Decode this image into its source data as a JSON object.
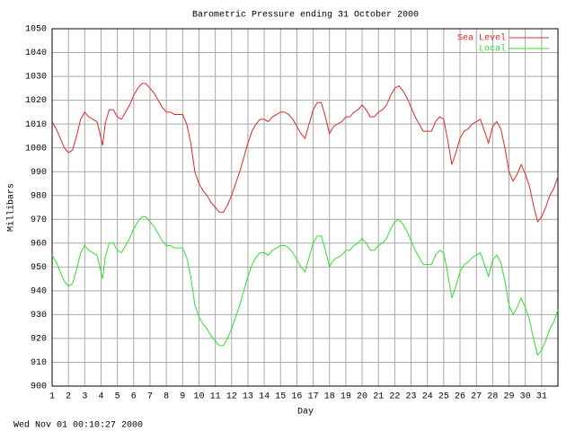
{
  "chart_data": {
    "type": "line",
    "title": "Barometric Pressure ending 31 October 2000",
    "x_label": "Day",
    "y_label": "Millibars",
    "footer": "Wed Nov 01 00:10:27 2000",
    "xlim": [
      1,
      32
    ],
    "xticks": [
      1,
      2,
      3,
      4,
      5,
      6,
      7,
      8,
      9,
      10,
      11,
      12,
      13,
      14,
      15,
      16,
      17,
      18,
      19,
      20,
      21,
      22,
      23,
      24,
      25,
      26,
      27,
      28,
      29,
      30,
      31
    ],
    "ylim": [
      900,
      1050
    ],
    "yticks": [
      900,
      910,
      920,
      930,
      940,
      950,
      960,
      970,
      980,
      990,
      1000,
      1010,
      1020,
      1030,
      1040,
      1050
    ],
    "grid": true,
    "legend": "top-right",
    "x": [
      1,
      1.25,
      1.5,
      1.75,
      2,
      2.25,
      2.5,
      2.75,
      3,
      3.25,
      3.5,
      3.75,
      4,
      4.1,
      4.25,
      4.5,
      4.75,
      5,
      5.25,
      5.5,
      5.75,
      6,
      6.25,
      6.5,
      6.75,
      7,
      7.25,
      7.5,
      7.75,
      8,
      8.25,
      8.5,
      8.75,
      9,
      9.25,
      9.5,
      9.75,
      10,
      10.25,
      10.5,
      10.75,
      11,
      11.25,
      11.5,
      11.75,
      12,
      12.25,
      12.5,
      12.75,
      13,
      13.25,
      13.5,
      13.75,
      14,
      14.25,
      14.5,
      14.75,
      15,
      15.25,
      15.5,
      15.75,
      16,
      16.25,
      16.5,
      16.75,
      17,
      17.25,
      17.5,
      17.75,
      18,
      18.25,
      18.5,
      18.75,
      19,
      19.25,
      19.5,
      19.75,
      20,
      20.25,
      20.5,
      20.75,
      21,
      21.25,
      21.5,
      21.75,
      22,
      22.25,
      22.5,
      22.75,
      23,
      23.25,
      23.5,
      23.75,
      24,
      24.25,
      24.5,
      24.75,
      25,
      25.25,
      25.5,
      25.75,
      26,
      26.25,
      26.5,
      26.75,
      27,
      27.25,
      27.5,
      27.75,
      28,
      28.25,
      28.5,
      28.75,
      29,
      29.25,
      29.5,
      29.75,
      30,
      30.25,
      30.5,
      30.75,
      31,
      31.25,
      31.5,
      31.75,
      32
    ],
    "series": [
      {
        "name": "Sea Level",
        "color": "#e02828",
        "values": [
          1011,
          1008,
          1004,
          1000,
          998,
          999,
          1005,
          1012,
          1015,
          1013,
          1012,
          1011,
          1004,
          1001,
          1010,
          1016,
          1016,
          1013,
          1012,
          1015,
          1018,
          1022,
          1025,
          1027,
          1027,
          1025,
          1023,
          1020,
          1017,
          1015,
          1015,
          1014,
          1014,
          1014,
          1010,
          1002,
          990,
          985,
          982,
          980,
          977,
          975,
          973,
          973,
          976,
          980,
          985,
          990,
          996,
          1002,
          1007,
          1010,
          1012,
          1012,
          1011,
          1013,
          1014,
          1015,
          1015,
          1014,
          1012,
          1009,
          1006,
          1004,
          1010,
          1016,
          1019,
          1019,
          1013,
          1006,
          1009,
          1010,
          1011,
          1013,
          1013,
          1015,
          1016,
          1018,
          1016,
          1013,
          1013,
          1015,
          1016,
          1018,
          1022,
          1025,
          1026,
          1024,
          1021,
          1017,
          1013,
          1010,
          1007,
          1007,
          1007,
          1011,
          1013,
          1012,
          1003,
          993,
          998,
          1004,
          1007,
          1008,
          1010,
          1011,
          1012,
          1007,
          1002,
          1009,
          1011,
          1008,
          1000,
          990,
          986,
          989,
          993,
          989,
          984,
          976,
          969,
          971,
          975,
          980,
          983,
          988
        ]
      },
      {
        "name": "Local",
        "color": "#30e030",
        "values": [
          955,
          952,
          948,
          944,
          942,
          943,
          949,
          956,
          959,
          957,
          956,
          955,
          948,
          945,
          954,
          960,
          960,
          957,
          956,
          959,
          962,
          966,
          969,
          971,
          971,
          969,
          967,
          964,
          961,
          959,
          959,
          958,
          958,
          958,
          954,
          946,
          934,
          929,
          926,
          924,
          921,
          919,
          917,
          917,
          920,
          924,
          929,
          934,
          940,
          946,
          951,
          954,
          956,
          956,
          955,
          957,
          958,
          959,
          959,
          958,
          956,
          953,
          950,
          948,
          954,
          960,
          963,
          963,
          957,
          950,
          953,
          954,
          955,
          957,
          957,
          959,
          960,
          962,
          960,
          957,
          957,
          959,
          960,
          962,
          966,
          969,
          970,
          968,
          965,
          961,
          957,
          954,
          951,
          951,
          951,
          955,
          957,
          956,
          947,
          937,
          942,
          948,
          951,
          952,
          954,
          955,
          956,
          951,
          946,
          953,
          955,
          952,
          944,
          934,
          930,
          933,
          937,
          933,
          928,
          920,
          913,
          915,
          919,
          924,
          927,
          932
        ]
      }
    ]
  }
}
